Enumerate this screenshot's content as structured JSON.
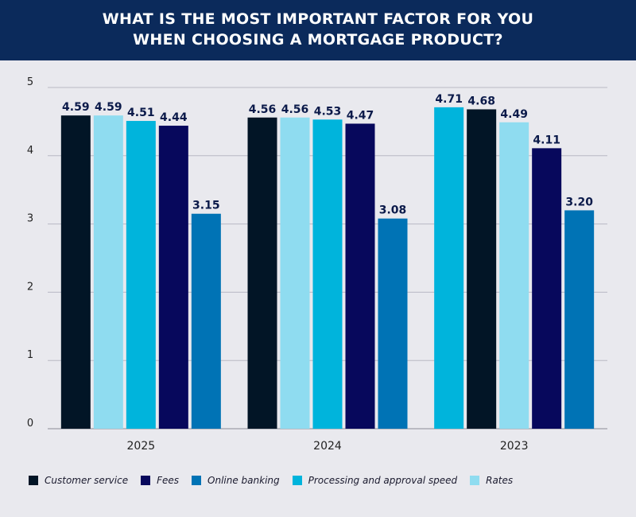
{
  "header": {
    "title_line1": "WHAT IS THE MOST IMPORTANT FACTOR FOR YOU",
    "title_line2": "WHEN CHOOSING A MORTGAGE PRODUCT?"
  },
  "chart_data": {
    "type": "bar",
    "title": "WHAT IS THE MOST IMPORTANT FACTOR FOR YOU WHEN CHOOSING A MORTGAGE PRODUCT?",
    "ylim": [
      0,
      5
    ],
    "yticks": [
      "0",
      "1",
      "2",
      "3",
      "4",
      "5"
    ],
    "grid": true,
    "legend_position": "bottom",
    "series_colors": {
      "Customer service": "#021526",
      "Fees": "#07085c",
      "Online banking": "#0073b5",
      "Processing and approval speed": "#00b4dc",
      "Rates": "#8fdcf0"
    },
    "groups": [
      {
        "category": "2025",
        "bars": [
          {
            "series": "Customer service",
            "value": 4.59,
            "label": "4.59"
          },
          {
            "series": "Rates",
            "value": 4.59,
            "label": "4.59"
          },
          {
            "series": "Processing and approval speed",
            "value": 4.51,
            "label": "4.51"
          },
          {
            "series": "Fees",
            "value": 4.44,
            "label": "4.44"
          },
          {
            "series": "Online banking",
            "value": 3.15,
            "label": "3.15"
          }
        ]
      },
      {
        "category": "2024",
        "bars": [
          {
            "series": "Customer service",
            "value": 4.56,
            "label": "4.56"
          },
          {
            "series": "Rates",
            "value": 4.56,
            "label": "4.56"
          },
          {
            "series": "Processing and approval speed",
            "value": 4.53,
            "label": "4.53"
          },
          {
            "series": "Fees",
            "value": 4.47,
            "label": "4.47"
          },
          {
            "series": "Online banking",
            "value": 3.08,
            "label": "3.08"
          }
        ]
      },
      {
        "category": "2023",
        "bars": [
          {
            "series": "Processing and approval speed",
            "value": 4.71,
            "label": "4.71"
          },
          {
            "series": "Customer service",
            "value": 4.68,
            "label": "4.68"
          },
          {
            "series": "Rates",
            "value": 4.49,
            "label": "4.49"
          },
          {
            "series": "Fees",
            "value": 4.11,
            "label": "4.11"
          },
          {
            "series": "Online banking",
            "value": 3.2,
            "label": "3.20"
          }
        ]
      }
    ],
    "legend": [
      {
        "name": "Customer service",
        "color": "#021526"
      },
      {
        "name": "Fees",
        "color": "#07085c"
      },
      {
        "name": "Online banking",
        "color": "#0073b5"
      },
      {
        "name": "Processing and approval speed",
        "color": "#00b4dc"
      },
      {
        "name": "Rates",
        "color": "#8fdcf0"
      }
    ]
  }
}
